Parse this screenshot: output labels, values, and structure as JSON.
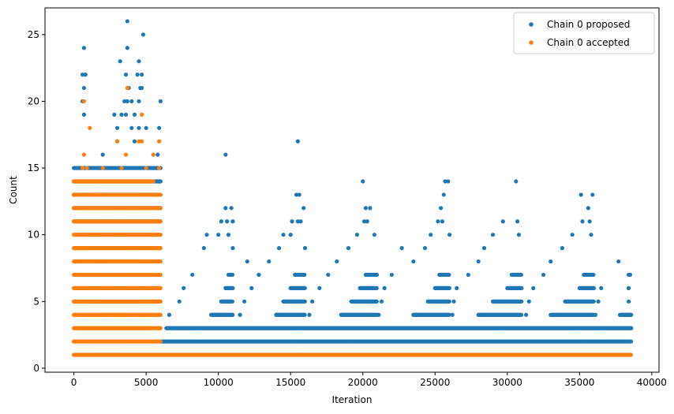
{
  "chart_data": {
    "type": "scatter",
    "title": "",
    "xlabel": "Iteration",
    "ylabel": "Count",
    "xlim": [
      -2000,
      40500
    ],
    "ylim": [
      -0.3,
      27
    ],
    "xticks": [
      0,
      5000,
      10000,
      15000,
      20000,
      25000,
      30000,
      35000,
      40000
    ],
    "xtick_labels": [
      "0",
      "5000",
      "10000",
      "15000",
      "20000",
      "25000",
      "30000",
      "35000",
      "40000"
    ],
    "yticks": [
      0,
      5,
      10,
      15,
      20,
      25
    ],
    "ytick_labels": [
      "0",
      "5",
      "10",
      "15",
      "20",
      "25"
    ],
    "grid": false,
    "legend_position": "top-right",
    "colors": {
      "proposed": "#1f77b4",
      "accepted": "#ff7f0e"
    },
    "series": [
      {
        "name": "Chain 0 proposed",
        "color": "#1f77b4",
        "note_summary": "Dense bands of integer counts; x from 0 to ~38500. Iterations 0-6000 reach up to 26; thereafter periodic peaks near 10500, 15500, 20000, 25500, 30500, 35500.",
        "points": [
          [
            3700,
            26
          ],
          [
            4800,
            25
          ],
          [
            700,
            24
          ],
          [
            3700,
            24
          ],
          [
            3200,
            23
          ],
          [
            4500,
            23
          ],
          [
            600,
            22
          ],
          [
            800,
            22
          ],
          [
            3600,
            22
          ],
          [
            4400,
            22
          ],
          [
            4700,
            22
          ],
          [
            700,
            21
          ],
          [
            3800,
            21
          ],
          [
            4600,
            21
          ],
          [
            4700,
            21
          ],
          [
            600,
            20
          ],
          [
            3500,
            20
          ],
          [
            3700,
            20
          ],
          [
            4000,
            20
          ],
          [
            4500,
            20
          ],
          [
            6000,
            20
          ],
          [
            700,
            19
          ],
          [
            2800,
            19
          ],
          [
            3300,
            19
          ],
          [
            3600,
            19
          ],
          [
            4200,
            19
          ],
          [
            3000,
            18
          ],
          [
            4000,
            18
          ],
          [
            4500,
            18
          ],
          [
            5000,
            18
          ],
          [
            5900,
            18
          ],
          [
            15500,
            17
          ],
          [
            3000,
            17
          ],
          [
            4200,
            17
          ],
          [
            10500,
            16
          ],
          [
            2000,
            16
          ],
          [
            5800,
            16
          ],
          [
            20000,
            14
          ],
          [
            25700,
            14
          ],
          [
            25900,
            14
          ],
          [
            30600,
            14
          ],
          [
            15400,
            13
          ],
          [
            15600,
            13
          ],
          [
            25600,
            13
          ],
          [
            35100,
            13
          ],
          [
            35900,
            13
          ],
          [
            10500,
            12
          ],
          [
            10900,
            12
          ],
          [
            15900,
            12
          ],
          [
            20200,
            12
          ],
          [
            20500,
            12
          ],
          [
            25400,
            12
          ],
          [
            35600,
            12
          ],
          [
            10200,
            11
          ],
          [
            10600,
            11
          ],
          [
            11000,
            11
          ],
          [
            15100,
            11
          ],
          [
            15500,
            11
          ],
          [
            15700,
            11
          ],
          [
            20100,
            11
          ],
          [
            20300,
            11
          ],
          [
            25200,
            11
          ],
          [
            25500,
            11
          ],
          [
            29700,
            11
          ],
          [
            30700,
            11
          ],
          [
            35200,
            11
          ],
          [
            35700,
            11
          ],
          [
            9200,
            10
          ],
          [
            10000,
            10
          ],
          [
            10700,
            10
          ],
          [
            14500,
            10
          ],
          [
            15000,
            10
          ],
          [
            19600,
            10
          ],
          [
            20800,
            10
          ],
          [
            24700,
            10
          ],
          [
            26000,
            10
          ],
          [
            29000,
            10
          ],
          [
            30800,
            10
          ],
          [
            34500,
            10
          ],
          [
            35800,
            10
          ],
          [
            9000,
            9
          ],
          [
            11000,
            9
          ],
          [
            14200,
            9
          ],
          [
            16000,
            9
          ],
          [
            19000,
            9
          ],
          [
            22700,
            9
          ],
          [
            24300,
            9
          ],
          [
            28400,
            9
          ],
          [
            33800,
            9
          ],
          [
            37700,
            8
          ],
          [
            38400,
            7
          ],
          [
            38400,
            6
          ],
          [
            12000,
            8
          ],
          [
            13500,
            8
          ],
          [
            18200,
            8
          ],
          [
            23500,
            8
          ],
          [
            28000,
            8
          ],
          [
            33000,
            8
          ],
          [
            8200,
            7
          ],
          [
            12800,
            7
          ],
          [
            17600,
            7
          ],
          [
            22000,
            7
          ],
          [
            27300,
            7
          ],
          [
            32500,
            7
          ],
          [
            38500,
            7
          ],
          [
            7600,
            6
          ],
          [
            12300,
            6
          ],
          [
            17000,
            6
          ],
          [
            21500,
            6
          ],
          [
            26500,
            6
          ],
          [
            31800,
            6
          ],
          [
            36500,
            6
          ],
          [
            7300,
            5
          ],
          [
            11800,
            5
          ],
          [
            16500,
            5
          ],
          [
            21300,
            5
          ],
          [
            26300,
            5
          ],
          [
            31500,
            5
          ],
          [
            36300,
            5
          ],
          [
            38400,
            5
          ],
          [
            6600,
            4
          ],
          [
            11500,
            4
          ],
          [
            16300,
            4
          ],
          [
            21100,
            4
          ],
          [
            26200,
            4
          ],
          [
            31300,
            4
          ],
          [
            36100,
            4
          ],
          [
            38300,
            4
          ],
          [
            6500,
            3
          ],
          [
            16200,
            3
          ],
          [
            22500,
            3
          ],
          [
            27000,
            3
          ],
          [
            38500,
            3
          ]
        ],
        "bands": [
          {
            "y": 2,
            "x": [
              6000,
              38600
            ]
          },
          {
            "y": 3,
            "x": [
              6400,
              38600
            ]
          },
          {
            "y": 4,
            "x": [
              9500,
              11000
            ]
          },
          {
            "y": 4,
            "x": [
              14000,
              16000
            ]
          },
          {
            "y": 4,
            "x": [
              18500,
              21000
            ]
          },
          {
            "y": 4,
            "x": [
              23500,
              26000
            ]
          },
          {
            "y": 4,
            "x": [
              28000,
              31000
            ]
          },
          {
            "y": 4,
            "x": [
              33000,
              36000
            ]
          },
          {
            "y": 4,
            "x": [
              37800,
              38600
            ]
          },
          {
            "y": 5,
            "x": [
              10200,
              11000
            ]
          },
          {
            "y": 5,
            "x": [
              14500,
              16000
            ]
          },
          {
            "y": 5,
            "x": [
              19200,
              21000
            ]
          },
          {
            "y": 5,
            "x": [
              24500,
              26000
            ]
          },
          {
            "y": 5,
            "x": [
              29000,
              31000
            ]
          },
          {
            "y": 5,
            "x": [
              34000,
              36000
            ]
          },
          {
            "y": 6,
            "x": [
              10500,
              11000
            ]
          },
          {
            "y": 6,
            "x": [
              15000,
              16000
            ]
          },
          {
            "y": 6,
            "x": [
              19800,
              21000
            ]
          },
          {
            "y": 6,
            "x": [
              25000,
              26000
            ]
          },
          {
            "y": 6,
            "x": [
              30000,
              31000
            ]
          },
          {
            "y": 6,
            "x": [
              35000,
              36000
            ]
          },
          {
            "y": 7,
            "x": [
              10700,
              11000
            ]
          },
          {
            "y": 7,
            "x": [
              15300,
              16000
            ]
          },
          {
            "y": 7,
            "x": [
              20200,
              21000
            ]
          },
          {
            "y": 7,
            "x": [
              25300,
              26000
            ]
          },
          {
            "y": 7,
            "x": [
              30300,
              31000
            ]
          },
          {
            "y": 7,
            "x": [
              35300,
              36000
            ]
          },
          {
            "y": 11,
            "x": [
              0,
              6000
            ]
          },
          {
            "y": 12,
            "x": [
              0,
              6000
            ]
          },
          {
            "y": 13,
            "x": [
              0,
              6000
            ]
          },
          {
            "y": 14,
            "x": [
              0,
              6000
            ]
          },
          {
            "y": 15,
            "x": [
              0,
              6000
            ]
          }
        ]
      },
      {
        "name": "Chain 0 accepted",
        "color": "#ff7f0e",
        "note_summary": "Accepted counts dense for y 1-15 within iterations 0-6000; y=1 continues to ~38500.",
        "points": [
          [
            3700,
            21
          ],
          [
            700,
            20
          ],
          [
            4700,
            19
          ],
          [
            1100,
            18
          ],
          [
            5900,
            17
          ],
          [
            3000,
            17
          ],
          [
            4500,
            17
          ],
          [
            4700,
            17
          ],
          [
            700,
            16
          ],
          [
            3600,
            16
          ],
          [
            5500,
            16
          ],
          [
            600,
            15
          ],
          [
            900,
            15
          ],
          [
            2000,
            15
          ],
          [
            3300,
            15
          ],
          [
            5000,
            15
          ],
          [
            5900,
            15
          ],
          [
            1500,
            1
          ],
          [
            2000,
            1
          ],
          [
            2500,
            1
          ],
          [
            2900,
            1
          ]
        ],
        "bands": [
          {
            "y": 1,
            "x": [
              0,
              38600
            ]
          },
          {
            "y": 2,
            "x": [
              0,
              6000
            ]
          },
          {
            "y": 3,
            "x": [
              0,
              6000
            ]
          },
          {
            "y": 4,
            "x": [
              0,
              6000
            ]
          },
          {
            "y": 5,
            "x": [
              0,
              6000
            ]
          },
          {
            "y": 6,
            "x": [
              0,
              6000
            ]
          },
          {
            "y": 7,
            "x": [
              0,
              6000
            ]
          },
          {
            "y": 8,
            "x": [
              0,
              6000
            ]
          },
          {
            "y": 9,
            "x": [
              0,
              6000
            ]
          },
          {
            "y": 10,
            "x": [
              0,
              6000
            ]
          },
          {
            "y": 11,
            "x": [
              0,
              6000
            ]
          },
          {
            "y": 12,
            "x": [
              0,
              6000
            ]
          },
          {
            "y": 13,
            "x": [
              0,
              6000
            ]
          },
          {
            "y": 14,
            "x": [
              0,
              5500
            ]
          }
        ]
      }
    ]
  }
}
